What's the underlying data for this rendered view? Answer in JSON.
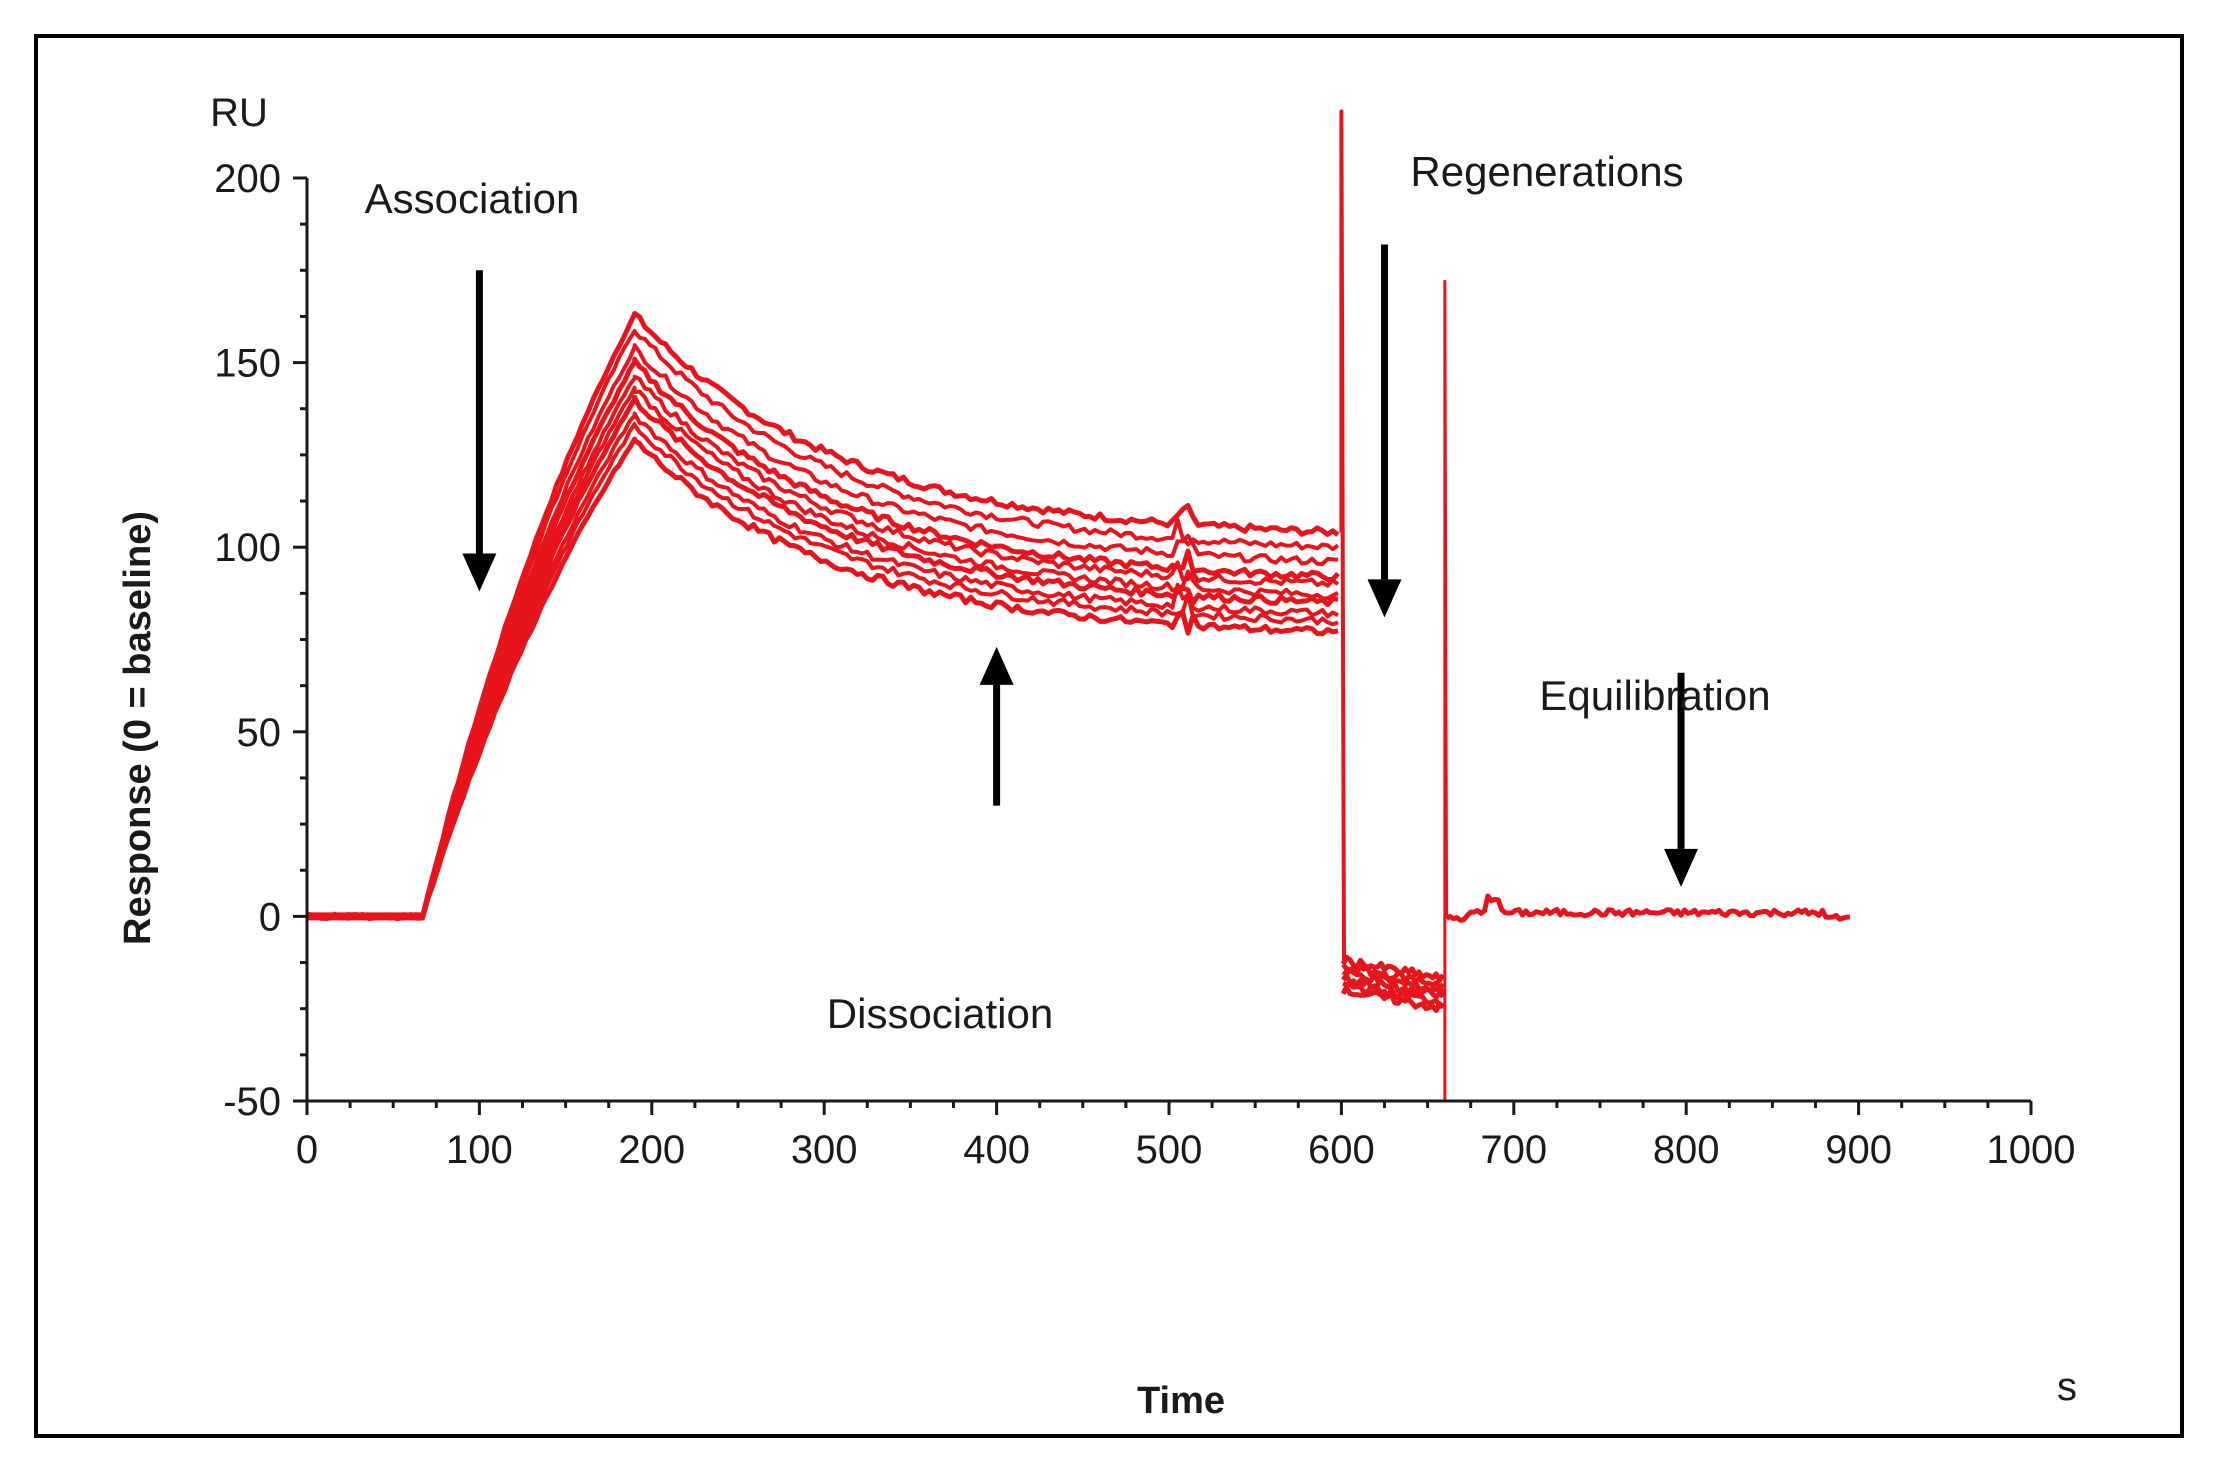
{
  "chart_data": {
    "type": "line",
    "title": "",
    "xlabel": "Time",
    "ylabel": "Response (0 = baseline)",
    "x_unit": "s",
    "y_unit": "RU",
    "xlim": [
      0,
      1000
    ],
    "ylim": [
      -50,
      200
    ],
    "x_ticks": [
      0,
      100,
      200,
      300,
      400,
      500,
      600,
      700,
      800,
      900,
      1000
    ],
    "y_ticks": [
      -50,
      0,
      50,
      100,
      150,
      200
    ],
    "x_tick_labels": [
      "0",
      "100",
      "200",
      "300",
      "400",
      "500",
      "600",
      "700",
      "800",
      "900",
      "1000"
    ],
    "y_tick_labels": [
      "-50",
      "0",
      "50",
      "100",
      "150",
      "200"
    ],
    "grid": false,
    "color": "#e8141b",
    "series_description": "Overlaid sensorgram traces (red)",
    "phases": {
      "baseline_end_s": 67,
      "association_end_s": 190,
      "dissociation_end_s": 600,
      "regeneration_1_end_s": 660,
      "run_end_s": 895
    },
    "series": [
      {
        "name": "trace 1",
        "peak": 163,
        "end_dissociation": 104
      },
      {
        "name": "trace 2",
        "peak": 159,
        "end_dissociation": 100
      },
      {
        "name": "trace 3",
        "peak": 154,
        "end_dissociation": 96
      },
      {
        "name": "trace 4",
        "peak": 150,
        "end_dissociation": 92
      },
      {
        "name": "trace 5",
        "peak": 146,
        "end_dissociation": 90
      },
      {
        "name": "trace 6",
        "peak": 143,
        "end_dissociation": 87
      },
      {
        "name": "trace 7",
        "peak": 140,
        "end_dissociation": 85
      },
      {
        "name": "trace 8",
        "peak": 136,
        "end_dissociation": 82
      },
      {
        "name": "trace 9",
        "peak": 133,
        "end_dissociation": 80
      },
      {
        "name": "trace 10",
        "peak": 129,
        "end_dissociation": 77
      }
    ],
    "regeneration_spikes": [
      {
        "time": 600,
        "peak": 218
      },
      {
        "time": 660,
        "peak": 172,
        "trough": -50
      }
    ],
    "regeneration_plateau": {
      "start": -12,
      "end": -17
    },
    "equilibration_level": 1,
    "annotations": [
      {
        "text": "Association",
        "arrow_time": 100,
        "arrow_from": 175,
        "arrow_to": 88,
        "direction": "down"
      },
      {
        "text": "Dissociation",
        "arrow_time": 400,
        "arrow_from": 30,
        "arrow_to": 73,
        "direction": "up"
      },
      {
        "text": "Regenerations",
        "arrow_time": 625,
        "arrow_from": 182,
        "arrow_to": 81,
        "direction": "down"
      },
      {
        "text": "Equilibration",
        "arrow_time": 797,
        "arrow_from": 66,
        "arrow_to": 8,
        "direction": "down"
      }
    ]
  }
}
